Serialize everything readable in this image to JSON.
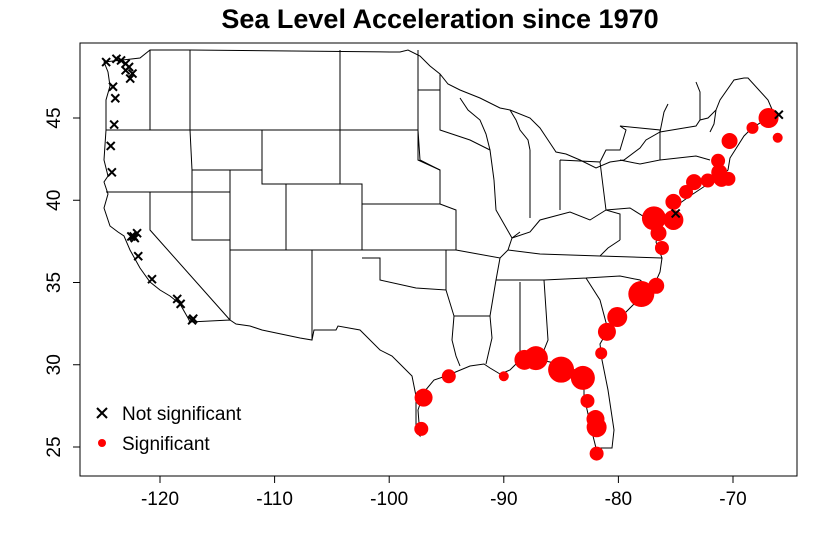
{
  "chart_data": {
    "type": "scatter",
    "title": "Sea Level Acceleration since 1970",
    "xlabel": "",
    "ylabel": "",
    "xlim": [
      -127,
      -65
    ],
    "ylim": [
      23.9,
      49.4
    ],
    "x_ticks": [
      -120,
      -110,
      -100,
      -90,
      -80,
      -70
    ],
    "y_ticks": [
      25,
      30,
      35,
      40,
      45
    ],
    "grid": false,
    "legend_position": "bottomleft",
    "legend": [
      {
        "label": "Not significant",
        "marker": "x",
        "color": "#000000"
      },
      {
        "label": "Significant",
        "marker": "filled-circle",
        "color": "#ff0000"
      }
    ],
    "series": [
      {
        "name": "Not significant",
        "marker": "x",
        "color": "#000000",
        "points": [
          {
            "lon": -124.7,
            "lat": 48.4
          },
          {
            "lon": -123.8,
            "lat": 48.6
          },
          {
            "lon": -123.4,
            "lat": 48.5
          },
          {
            "lon": -123.0,
            "lat": 48.3
          },
          {
            "lon": -122.7,
            "lat": 48.1
          },
          {
            "lon": -122.4,
            "lat": 47.7
          },
          {
            "lon": -122.6,
            "lat": 47.4
          },
          {
            "lon": -123.0,
            "lat": 47.9
          },
          {
            "lon": -124.1,
            "lat": 46.9
          },
          {
            "lon": -123.9,
            "lat": 46.2
          },
          {
            "lon": -124.0,
            "lat": 44.6
          },
          {
            "lon": -124.3,
            "lat": 43.3
          },
          {
            "lon": -124.2,
            "lat": 41.7
          },
          {
            "lon": -122.5,
            "lat": 37.8
          },
          {
            "lon": -122.3,
            "lat": 37.8
          },
          {
            "lon": -122.0,
            "lat": 38.0
          },
          {
            "lon": -122.2,
            "lat": 37.7
          },
          {
            "lon": -121.9,
            "lat": 36.6
          },
          {
            "lon": -120.7,
            "lat": 35.2
          },
          {
            "lon": -118.5,
            "lat": 34.0
          },
          {
            "lon": -118.2,
            "lat": 33.7
          },
          {
            "lon": -117.2,
            "lat": 32.7
          },
          {
            "lon": -117.1,
            "lat": 32.8
          },
          {
            "lon": -75.0,
            "lat": 39.2
          },
          {
            "lon": -66.0,
            "lat": 45.2
          }
        ]
      },
      {
        "name": "Significant",
        "marker": "filled-circle",
        "color": "#ff0000",
        "points": [
          {
            "lon": -97.2,
            "lat": 26.1,
            "size": 7
          },
          {
            "lon": -97.0,
            "lat": 28.0,
            "size": 9
          },
          {
            "lon": -94.8,
            "lat": 29.3,
            "size": 7
          },
          {
            "lon": -90.0,
            "lat": 29.3,
            "size": 5
          },
          {
            "lon": -88.2,
            "lat": 30.3,
            "size": 10
          },
          {
            "lon": -87.2,
            "lat": 30.4,
            "size": 12
          },
          {
            "lon": -85.0,
            "lat": 29.7,
            "size": 13
          },
          {
            "lon": -83.1,
            "lat": 29.2,
            "size": 12
          },
          {
            "lon": -82.7,
            "lat": 27.8,
            "size": 7
          },
          {
            "lon": -82.0,
            "lat": 26.7,
            "size": 9
          },
          {
            "lon": -81.9,
            "lat": 26.2,
            "size": 10
          },
          {
            "lon": -81.9,
            "lat": 24.6,
            "size": 7
          },
          {
            "lon": -81.5,
            "lat": 30.7,
            "size": 6
          },
          {
            "lon": -81.0,
            "lat": 32.0,
            "size": 9
          },
          {
            "lon": -80.1,
            "lat": 32.9,
            "size": 10
          },
          {
            "lon": -78.0,
            "lat": 34.3,
            "size": 13
          },
          {
            "lon": -76.7,
            "lat": 34.8,
            "size": 8
          },
          {
            "lon": -76.2,
            "lat": 37.1,
            "size": 7
          },
          {
            "lon": -76.5,
            "lat": 38.0,
            "size": 8
          },
          {
            "lon": -76.9,
            "lat": 38.9,
            "size": 12
          },
          {
            "lon": -75.2,
            "lat": 38.8,
            "size": 10
          },
          {
            "lon": -75.2,
            "lat": 39.9,
            "size": 8
          },
          {
            "lon": -74.1,
            "lat": 40.5,
            "size": 7
          },
          {
            "lon": -73.4,
            "lat": 41.1,
            "size": 8
          },
          {
            "lon": -72.2,
            "lat": 41.2,
            "size": 7
          },
          {
            "lon": -71.0,
            "lat": 41.3,
            "size": 8
          },
          {
            "lon": -70.4,
            "lat": 41.3,
            "size": 7
          },
          {
            "lon": -71.2,
            "lat": 41.7,
            "size": 8
          },
          {
            "lon": -71.3,
            "lat": 42.4,
            "size": 7
          },
          {
            "lon": -70.3,
            "lat": 43.6,
            "size": 8
          },
          {
            "lon": -68.3,
            "lat": 44.4,
            "size": 6
          },
          {
            "lon": -66.9,
            "lat": 45.0,
            "size": 10
          },
          {
            "lon": -66.1,
            "lat": 43.8,
            "size": 5
          }
        ]
      }
    ]
  }
}
